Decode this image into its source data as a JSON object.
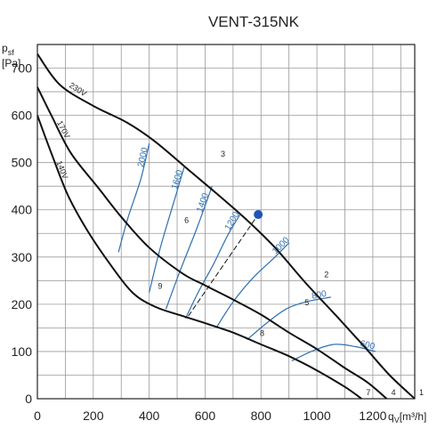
{
  "chart_data": {
    "type": "line",
    "title": "VENT-315NK",
    "ylabel_main": "p",
    "ylabel_sub": "sf",
    "ylabel_unit": "[Pa]",
    "xlabel_main": "q",
    "xlabel_sub": "V",
    "xlabel_unit": "[m³/h]",
    "xlim": [
      0,
      1350
    ],
    "ylim": [
      0,
      750
    ],
    "xticks": [
      0,
      200,
      400,
      600,
      800,
      1000,
      1200
    ],
    "yticks": [
      0,
      100,
      200,
      300,
      400,
      500,
      600,
      700
    ],
    "grid": true,
    "series": [
      {
        "name": "230V",
        "x": [
          0,
          80,
          200,
          320,
          420,
          550,
          650,
          750,
          850,
          960,
          1070,
          1170,
          1260,
          1350
        ],
        "y": [
          730,
          665,
          620,
          585,
          545,
          480,
          430,
          378,
          320,
          245,
          175,
          110,
          50,
          0
        ]
      },
      {
        "name": "170V",
        "x": [
          0,
          50,
          120,
          220,
          300,
          400,
          520,
          600,
          700,
          800,
          900,
          1000,
          1100,
          1180,
          1250
        ],
        "y": [
          660,
          600,
          520,
          445,
          385,
          320,
          265,
          240,
          210,
          178,
          140,
          105,
          65,
          35,
          0
        ]
      },
      {
        "name": "140V",
        "x": [
          0,
          50,
          110,
          180,
          260,
          340,
          420,
          520,
          600,
          700,
          800,
          900,
          1000,
          1100,
          1160
        ],
        "y": [
          600,
          520,
          430,
          355,
          285,
          225,
          195,
          175,
          160,
          140,
          115,
          90,
          60,
          25,
          0
        ]
      }
    ],
    "rpm_lines": [
      {
        "label": "2000",
        "x": [
          290,
          325,
          370,
          400
        ],
        "y": [
          310,
          385,
          465,
          540
        ]
      },
      {
        "label": "1600",
        "x": [
          400,
          440,
          490,
          525
        ],
        "y": [
          225,
          320,
          420,
          490
        ]
      },
      {
        "label": "1400",
        "x": [
          460,
          510,
          570,
          625
        ],
        "y": [
          190,
          270,
          360,
          450
        ]
      },
      {
        "label": "1200",
        "x": [
          530,
          575,
          630,
          680,
          725
        ],
        "y": [
          170,
          225,
          285,
          345,
          390
        ]
      },
      {
        "label": "1000",
        "x": [
          640,
          700,
          770,
          850,
          900
        ],
        "y": [
          150,
          205,
          255,
          300,
          330
        ]
      },
      {
        "label": "800",
        "x": [
          750,
          820,
          890,
          960,
          1050
        ],
        "y": [
          125,
          160,
          190,
          205,
          215
        ]
      },
      {
        "label": "600",
        "x": [
          910,
          980,
          1060,
          1140,
          1210
        ],
        "y": [
          80,
          100,
          115,
          110,
          100
        ]
      }
    ],
    "points": [
      {
        "label": "1",
        "x": 1350,
        "y": 0
      },
      {
        "label": "2",
        "x": 1010,
        "y": 250
      },
      {
        "label": "3",
        "x": 640,
        "y": 505
      },
      {
        "label": "4",
        "x": 1250,
        "y": 0
      },
      {
        "label": "5",
        "x": 940,
        "y": 190
      },
      {
        "label": "6",
        "x": 510,
        "y": 365
      },
      {
        "label": "7",
        "x": 1160,
        "y": 0
      },
      {
        "label": "8",
        "x": 780,
        "y": 125
      },
      {
        "label": "9",
        "x": 415,
        "y": 225
      }
    ],
    "operating_point": {
      "x": 790,
      "y": 390
    }
  }
}
